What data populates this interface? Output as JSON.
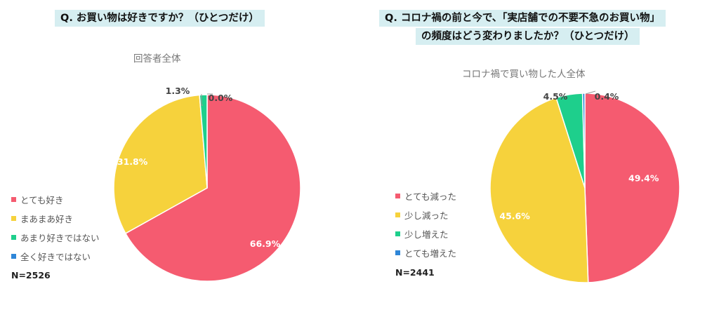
{
  "colors": {
    "pink": "#f55b70",
    "yellow": "#f6d23c",
    "green": "#1ecf8c",
    "blue": "#2e86d8",
    "question_bg": "#d6eef1"
  },
  "left": {
    "question": "Q. お買い物は好きですか？（ひとつだけ）",
    "subtitle": "回答者全体",
    "n_label": "N=2526"
  },
  "right": {
    "question_line1": "Q. コロナ禍の前と今で、「実店舗での不要不急のお買い物」",
    "question_line2": "の頻度はどう変わりましたか？（ひとつだけ）",
    "subtitle": "コロナ禍で買い物した人全体",
    "n_label": "N=2441"
  },
  "chart_data": [
    {
      "type": "pie",
      "title": "回答者全体",
      "categories": [
        "とても好き",
        "まあまあ好き",
        "あまり好きではない",
        "全く好きではない"
      ],
      "values": [
        66.9,
        31.8,
        1.3,
        0.0
      ],
      "value_labels": [
        "66.9%",
        "31.8%",
        "1.3%",
        "0.0%"
      ],
      "colors": [
        "#f55b70",
        "#f6d23c",
        "#1ecf8c",
        "#2e86d8"
      ],
      "legend_position": "left"
    },
    {
      "type": "pie",
      "title": "コロナ禍で買い物した人全体",
      "categories": [
        "とても減った",
        "少し減った",
        "少し増えた",
        "とても増えた"
      ],
      "values": [
        49.4,
        45.6,
        4.5,
        0.4
      ],
      "value_labels": [
        "49.4%",
        "45.6%",
        "4.5%",
        "0.4%"
      ],
      "colors": [
        "#f55b70",
        "#f6d23c",
        "#1ecf8c",
        "#2e86d8"
      ],
      "legend_position": "left"
    }
  ]
}
